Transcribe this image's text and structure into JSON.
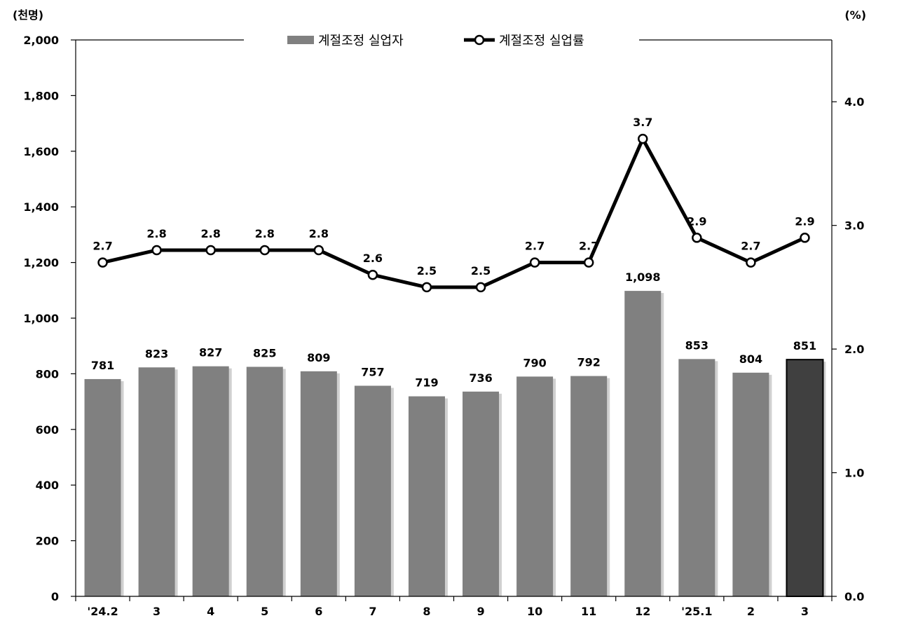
{
  "chart_data": {
    "type": "bar",
    "categories": [
      "'24.2",
      "3",
      "4",
      "5",
      "6",
      "7",
      "8",
      "9",
      "10",
      "11",
      "12",
      "'25.1",
      "2",
      "3"
    ],
    "series": [
      {
        "name": "계절조정 실업자",
        "type": "bar",
        "axis": "left",
        "values": [
          781,
          823,
          827,
          825,
          809,
          757,
          719,
          736,
          790,
          792,
          1098,
          853,
          804,
          851
        ],
        "data_labels": [
          "781",
          "823",
          "827",
          "825",
          "809",
          "757",
          "719",
          "736",
          "790",
          "792",
          "1,098",
          "853",
          "804",
          "851"
        ],
        "color": "#808080",
        "highlight_last_color": "#404040"
      },
      {
        "name": "계절조정 실업률",
        "type": "line",
        "axis": "right",
        "values": [
          2.7,
          2.8,
          2.8,
          2.8,
          2.8,
          2.6,
          2.5,
          2.5,
          2.7,
          2.7,
          3.7,
          2.9,
          2.7,
          2.9
        ],
        "data_labels": [
          "2.7",
          "2.8",
          "2.8",
          "2.8",
          "2.8",
          "2.6",
          "2.5",
          "2.5",
          "2.7",
          "2.7",
          "3.7",
          "2.9",
          "2.7",
          "2.9"
        ],
        "color": "#000000",
        "marker": "open-circle"
      }
    ],
    "left_axis": {
      "unit_label": "(천명)",
      "ylim": [
        0,
        2000
      ],
      "ticks": [
        0,
        200,
        400,
        600,
        800,
        1000,
        1200,
        1400,
        1600,
        1800,
        2000
      ],
      "tick_labels": [
        "0",
        "200",
        "400",
        "600",
        "800",
        "1,000",
        "1,200",
        "1,400",
        "1,600",
        "1,800",
        "2,000"
      ]
    },
    "right_axis": {
      "unit_label": "(%)",
      "ylim": [
        0,
        4.5
      ],
      "ticks": [
        0,
        1,
        2,
        3,
        4
      ],
      "tick_labels": [
        "0.0",
        "1.0",
        "2.0",
        "3.0",
        "4.0"
      ]
    },
    "legend": {
      "placement": "top-center",
      "entries": [
        "계절조정 실업자",
        "계절조정 실업률"
      ]
    },
    "grid": false
  }
}
